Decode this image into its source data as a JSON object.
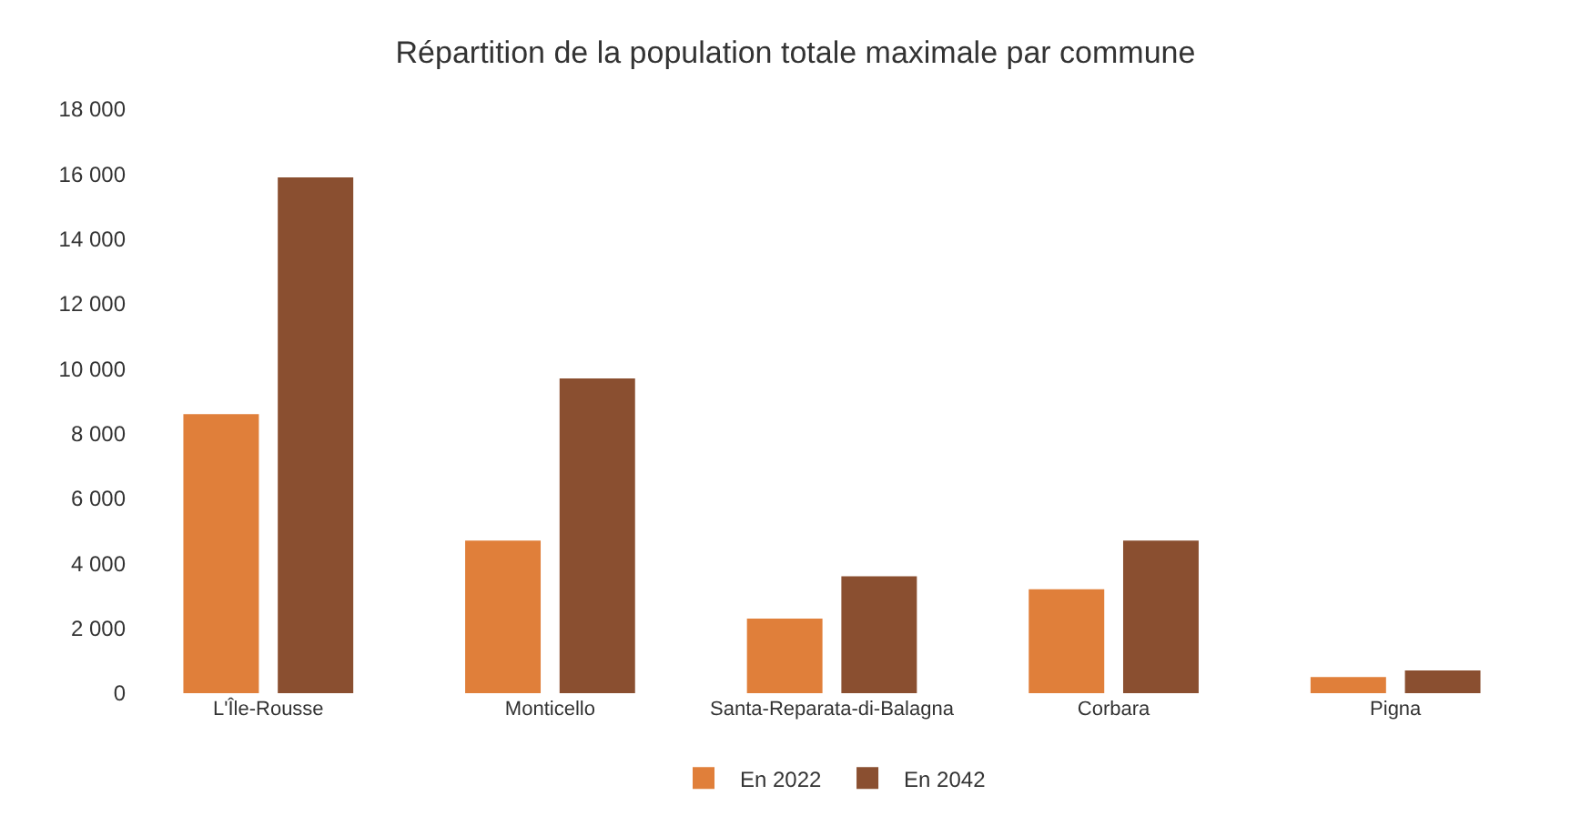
{
  "chart_data": {
    "type": "bar",
    "title": "Répartition de la population totale maximale par commune",
    "categories": [
      "L'Île-Rousse",
      "Monticello",
      "Santa-Reparata-di-Balagna",
      "Corbara",
      "Pigna"
    ],
    "series": [
      {
        "name": "En 2022",
        "color": "#e07f3a",
        "values": [
          8600,
          4700,
          2300,
          3200,
          500
        ]
      },
      {
        "name": "En 2042",
        "color": "#8a4f30",
        "values": [
          15900,
          9700,
          3600,
          4700,
          700
        ]
      }
    ],
    "ylim": [
      0,
      18000
    ],
    "yticks": [
      {
        "value": 0,
        "label": "0"
      },
      {
        "value": 2000,
        "label": "2 000"
      },
      {
        "value": 4000,
        "label": "4 000"
      },
      {
        "value": 6000,
        "label": "6 000"
      },
      {
        "value": 8000,
        "label": "8 000"
      },
      {
        "value": 10000,
        "label": "10 000"
      },
      {
        "value": 12000,
        "label": "12 000"
      },
      {
        "value": 14000,
        "label": "14 000"
      },
      {
        "value": 16000,
        "label": "16 000"
      },
      {
        "value": 18000,
        "label": "18 000"
      }
    ],
    "grid": false,
    "legend": "bottom"
  }
}
